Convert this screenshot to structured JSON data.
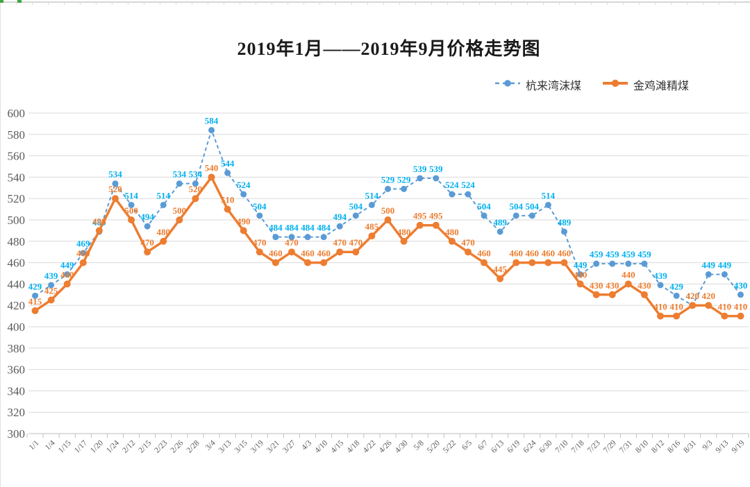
{
  "title": "2019年1月——2019年9月价格走势图",
  "chart_data": {
    "type": "line",
    "title": "2019年1月——2019年9月价格走势图",
    "categories": [
      "1/1",
      "1/4",
      "1/15",
      "1/17",
      "1/20",
      "1/24",
      "2/12",
      "2/15",
      "2/23",
      "2/26",
      "2/28",
      "3/4",
      "3/13",
      "3/15",
      "3/19",
      "3/21",
      "3/27",
      "4/3",
      "4/10",
      "4/15",
      "4/18",
      "4/22",
      "4/26",
      "4/30",
      "5/8",
      "5/20",
      "5/22",
      "6/5",
      "6/7",
      "6/13",
      "6/19",
      "6/24",
      "6/30",
      "7/10",
      "7/18",
      "7/23",
      "7/29",
      "7/31",
      "8/10",
      "8/12",
      "8/16",
      "8/31",
      "9/3",
      "9/13",
      "9/19"
    ],
    "series": [
      {
        "name": "杭来湾沫煤",
        "line_style": "dashed",
        "line_color": "#5B9BD5",
        "label_color": "#00B0F0",
        "values": [
          429,
          439,
          449,
          469,
          489,
          534,
          514,
          494,
          514,
          534,
          534,
          584,
          544,
          524,
          504,
          484,
          484,
          484,
          484,
          494,
          504,
          514,
          529,
          529,
          539,
          539,
          524,
          524,
          504,
          489,
          504,
          504,
          514,
          489,
          449,
          459,
          459,
          459,
          459,
          439,
          429,
          420,
          449,
          449,
          430
        ]
      },
      {
        "name": "金鸡滩精煤",
        "line_style": "solid",
        "line_color": "#ED7D31",
        "label_color": "#ED7D31",
        "values": [
          415,
          425,
          440,
          460,
          490,
          520,
          500,
          470,
          480,
          500,
          520,
          540,
          510,
          490,
          470,
          460,
          470,
          460,
          460,
          470,
          470,
          485,
          500,
          480,
          495,
          495,
          480,
          470,
          460,
          445,
          460,
          460,
          460,
          460,
          440,
          430,
          430,
          440,
          430,
          410,
          410,
          420,
          420,
          410,
          410
        ]
      }
    ],
    "ylim": [
      300,
      600
    ],
    "ytick_step": 20,
    "ytick_labels": [
      "600",
      "580",
      "560",
      "540",
      "520",
      "500",
      "480",
      "460",
      "440",
      "420",
      "400",
      "380",
      "360",
      "340",
      "320",
      "300"
    ],
    "grid": true,
    "data_labels": true,
    "legend_position": "top-right",
    "xlabel": "",
    "ylabel": ""
  },
  "colors": {
    "grid": "#D9D9D9",
    "axis": "#BFBFBF",
    "tick_text": "#595959",
    "title_text": "#1a1a1a"
  }
}
